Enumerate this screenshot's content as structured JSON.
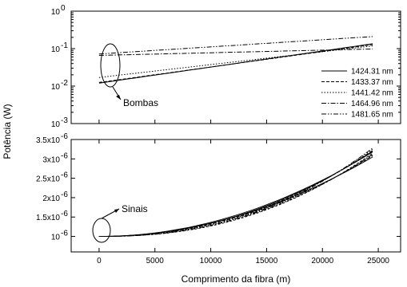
{
  "chart_data": [
    {
      "type": "line",
      "panel": "top",
      "yscale": "log",
      "ylim": [
        0.001,
        1
      ],
      "xlim": [
        -2500,
        27000
      ],
      "ylabel": "Potência (W)",
      "yticks": [
        {
          "value": 1,
          "base": "10",
          "exp": "0"
        },
        {
          "value": 0.1,
          "base": "10",
          "exp": "-1"
        },
        {
          "value": 0.01,
          "base": "10",
          "exp": "-2"
        },
        {
          "value": 0.001,
          "base": "10",
          "exp": "-3"
        }
      ],
      "legend_position": "right",
      "annotation": "Bombas",
      "series": [
        {
          "name": "1424.31 nm",
          "dash": "",
          "x": [
            0,
            24500
          ],
          "y": [
            0.012,
            0.135
          ]
        },
        {
          "name": "1433.37 nm",
          "dash": "4,2",
          "x": [
            0,
            24500
          ],
          "y": [
            0.0125,
            0.128
          ]
        },
        {
          "name": "1441.42 nm",
          "dash": "1.5,2",
          "x": [
            0,
            24500
          ],
          "y": [
            0.017,
            0.118
          ]
        },
        {
          "name": "1464.96 nm",
          "dash": "6,2,1.5,2",
          "x": [
            0,
            24500
          ],
          "y": [
            0.066,
            0.098
          ]
        },
        {
          "name": "1481.65 nm",
          "dash": "6,2,1.5,2,1.5,2",
          "x": [
            0,
            24500
          ],
          "y": [
            0.072,
            0.21
          ]
        }
      ]
    },
    {
      "type": "line",
      "panel": "bottom",
      "ylim": [
        6e-07,
        3.5e-06
      ],
      "xlim": [
        -2500,
        27000
      ],
      "yticks": [
        {
          "value": 1e-06,
          "base": "10",
          "exp": "-6",
          "mant": ""
        },
        {
          "value": 1.5e-06,
          "base": "1.5x10",
          "exp": "-6",
          "mant": "1.5"
        },
        {
          "value": 2e-06,
          "base": "2x10",
          "exp": "-6",
          "mant": "2"
        },
        {
          "value": 2.5e-06,
          "base": "2.5x10",
          "exp": "-6",
          "mant": "2.5"
        },
        {
          "value": 3e-06,
          "base": "3x10",
          "exp": "-6",
          "mant": "3"
        },
        {
          "value": 3.5e-06,
          "base": "3.5x10",
          "exp": "-6",
          "mant": "3.5"
        }
      ],
      "xticks": [
        0,
        5000,
        10000,
        15000,
        20000,
        25000
      ],
      "xlabel": "Comprimento da fibra (m)",
      "annotation": "Sinais",
      "signal_curves": {
        "x_start": 0,
        "x_end": 24500,
        "y_start": 1e-06,
        "y_end": [
          3.05e-06,
          3.08e-06,
          3.1e-06,
          3.12e-06,
          3.15e-06,
          3.18e-06,
          3.2e-06,
          3.22e-06,
          3.25e-06,
          3.28e-06
        ]
      }
    }
  ]
}
